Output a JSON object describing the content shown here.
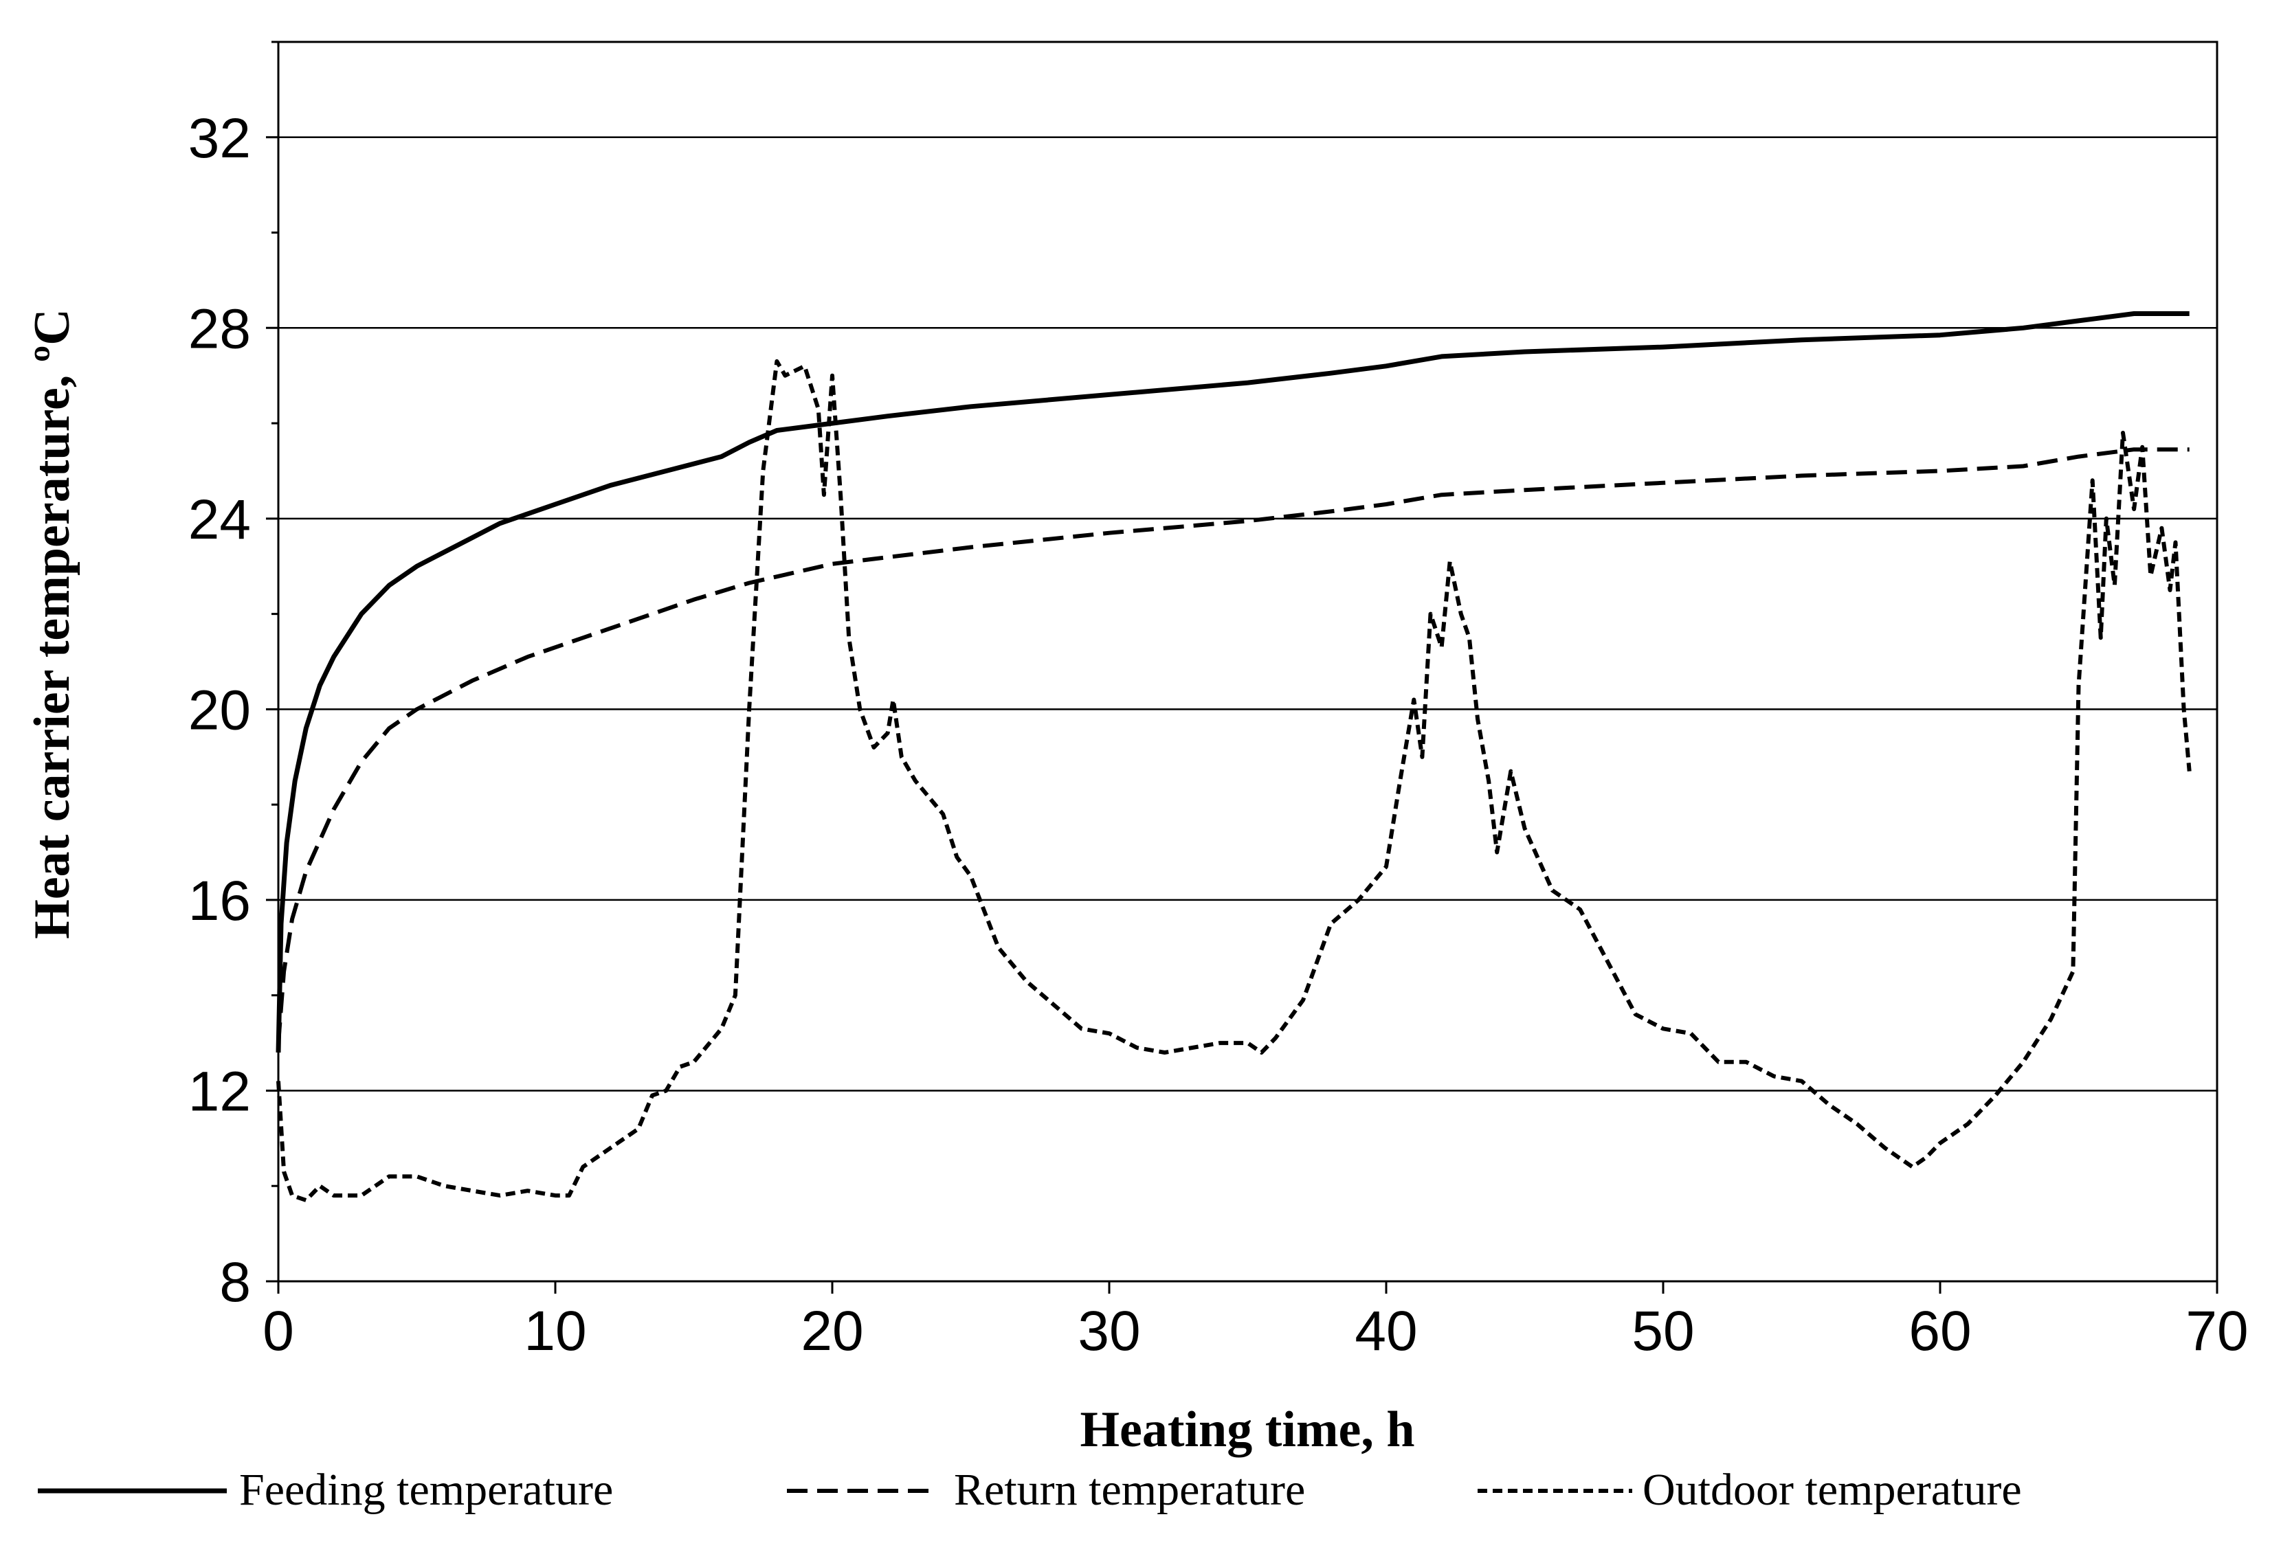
{
  "chart_data": {
    "type": "line",
    "title": "",
    "xlabel": "Heating time, h",
    "ylabel": "Heat carrier temperature, ºC",
    "xlim": [
      0,
      70
    ],
    "ylim": [
      8,
      34
    ],
    "x_ticks": [
      0,
      10,
      20,
      30,
      40,
      50,
      60,
      70
    ],
    "y_ticks": [
      8,
      12,
      16,
      20,
      24,
      28,
      32
    ],
    "grid": "horizontal",
    "legend_position": "bottom",
    "series": [
      {
        "name": "Feeding temperature",
        "style": "solid",
        "points": [
          [
            0,
            12.8
          ],
          [
            0.1,
            15.5
          ],
          [
            0.3,
            17.2
          ],
          [
            0.6,
            18.5
          ],
          [
            1,
            19.6
          ],
          [
            1.5,
            20.5
          ],
          [
            2,
            21.1
          ],
          [
            3,
            22.0
          ],
          [
            4,
            22.6
          ],
          [
            5,
            23.0
          ],
          [
            6,
            23.3
          ],
          [
            7,
            23.6
          ],
          [
            8,
            23.9
          ],
          [
            9,
            24.1
          ],
          [
            10,
            24.3
          ],
          [
            12,
            24.7
          ],
          [
            14,
            25.0
          ],
          [
            16,
            25.3
          ],
          [
            17,
            25.6
          ],
          [
            18,
            25.85
          ],
          [
            20,
            26.0
          ],
          [
            22,
            26.15
          ],
          [
            25,
            26.35
          ],
          [
            30,
            26.6
          ],
          [
            35,
            26.85
          ],
          [
            38,
            27.05
          ],
          [
            40,
            27.2
          ],
          [
            42,
            27.4
          ],
          [
            45,
            27.5
          ],
          [
            50,
            27.6
          ],
          [
            55,
            27.75
          ],
          [
            60,
            27.85
          ],
          [
            63,
            28.0
          ],
          [
            65,
            28.15
          ],
          [
            67,
            28.3
          ],
          [
            69,
            28.3
          ]
        ]
      },
      {
        "name": "Return temperature",
        "style": "dashed",
        "points": [
          [
            0,
            13.0
          ],
          [
            0.2,
            14.5
          ],
          [
            0.5,
            15.6
          ],
          [
            1,
            16.6
          ],
          [
            2,
            17.9
          ],
          [
            3,
            18.9
          ],
          [
            4,
            19.6
          ],
          [
            5,
            20.0
          ],
          [
            7,
            20.6
          ],
          [
            9,
            21.1
          ],
          [
            11,
            21.5
          ],
          [
            13,
            21.9
          ],
          [
            15,
            22.3
          ],
          [
            17,
            22.65
          ],
          [
            20,
            23.05
          ],
          [
            25,
            23.4
          ],
          [
            30,
            23.7
          ],
          [
            35,
            23.95
          ],
          [
            38,
            24.15
          ],
          [
            40,
            24.3
          ],
          [
            42,
            24.5
          ],
          [
            45,
            24.6
          ],
          [
            50,
            24.75
          ],
          [
            55,
            24.9
          ],
          [
            60,
            25.0
          ],
          [
            63,
            25.1
          ],
          [
            65,
            25.3
          ],
          [
            67,
            25.45
          ],
          [
            69,
            25.45
          ]
        ]
      },
      {
        "name": "Outdoor temperature",
        "style": "dotted",
        "points": [
          [
            0,
            12.2
          ],
          [
            0.2,
            10.3
          ],
          [
            0.5,
            9.8
          ],
          [
            1,
            9.7
          ],
          [
            1.5,
            10.0
          ],
          [
            2,
            9.8
          ],
          [
            3,
            9.8
          ],
          [
            4,
            10.2
          ],
          [
            5,
            10.2
          ],
          [
            6,
            10.0
          ],
          [
            7,
            9.9
          ],
          [
            8,
            9.8
          ],
          [
            9,
            9.9
          ],
          [
            10,
            9.8
          ],
          [
            10.5,
            9.8
          ],
          [
            11,
            10.4
          ],
          [
            12,
            10.8
          ],
          [
            13,
            11.2
          ],
          [
            13.5,
            11.9
          ],
          [
            14,
            12.0
          ],
          [
            14.5,
            12.5
          ],
          [
            15,
            12.6
          ],
          [
            16,
            13.3
          ],
          [
            16.5,
            14.0
          ],
          [
            17,
            20.0
          ],
          [
            17.5,
            25.0
          ],
          [
            18,
            27.3
          ],
          [
            18.3,
            27.0
          ],
          [
            19,
            27.2
          ],
          [
            19.5,
            26.3
          ],
          [
            19.7,
            24.5
          ],
          [
            20,
            27.0
          ],
          [
            20.3,
            24.5
          ],
          [
            20.6,
            21.5
          ],
          [
            21,
            20.0
          ],
          [
            21.5,
            19.2
          ],
          [
            22,
            19.5
          ],
          [
            22.2,
            20.2
          ],
          [
            22.5,
            19.0
          ],
          [
            23,
            18.5
          ],
          [
            24,
            17.8
          ],
          [
            24.5,
            16.9
          ],
          [
            25,
            16.5
          ],
          [
            26,
            15.0
          ],
          [
            27,
            14.3
          ],
          [
            28,
            13.8
          ],
          [
            29,
            13.3
          ],
          [
            30,
            13.2
          ],
          [
            31,
            12.9
          ],
          [
            32,
            12.8
          ],
          [
            33,
            12.9
          ],
          [
            34,
            13.0
          ],
          [
            35,
            13.0
          ],
          [
            35.5,
            12.8
          ],
          [
            36,
            13.1
          ],
          [
            37,
            13.9
          ],
          [
            37.5,
            14.7
          ],
          [
            38,
            15.5
          ],
          [
            39,
            16.0
          ],
          [
            40,
            16.7
          ],
          [
            40.5,
            18.5
          ],
          [
            41,
            20.2
          ],
          [
            41.3,
            19.0
          ],
          [
            41.6,
            22.0
          ],
          [
            42,
            21.3
          ],
          [
            42.3,
            23.1
          ],
          [
            42.7,
            22.0
          ],
          [
            43,
            21.5
          ],
          [
            43.3,
            19.8
          ],
          [
            43.7,
            18.5
          ],
          [
            44,
            17.0
          ],
          [
            44.5,
            18.7
          ],
          [
            45,
            17.5
          ],
          [
            46,
            16.2
          ],
          [
            47,
            15.8
          ],
          [
            48,
            14.7
          ],
          [
            49,
            13.6
          ],
          [
            50,
            13.3
          ],
          [
            51,
            13.2
          ],
          [
            52,
            12.6
          ],
          [
            53,
            12.6
          ],
          [
            54,
            12.3
          ],
          [
            55,
            12.2
          ],
          [
            56,
            11.7
          ],
          [
            57,
            11.3
          ],
          [
            58,
            10.8
          ],
          [
            59,
            10.4
          ],
          [
            59.5,
            10.6
          ],
          [
            60,
            10.9
          ],
          [
            61,
            11.3
          ],
          [
            62,
            11.9
          ],
          [
            63,
            12.6
          ],
          [
            64,
            13.5
          ],
          [
            64.8,
            14.5
          ],
          [
            65,
            20.5
          ],
          [
            65.5,
            24.8
          ],
          [
            65.8,
            21.5
          ],
          [
            66,
            24.0
          ],
          [
            66.3,
            22.6
          ],
          [
            66.6,
            25.8
          ],
          [
            67,
            24.2
          ],
          [
            67.3,
            25.5
          ],
          [
            67.6,
            22.8
          ],
          [
            68,
            23.8
          ],
          [
            68.3,
            22.5
          ],
          [
            68.5,
            23.5
          ],
          [
            68.8,
            20.0
          ],
          [
            69,
            18.7
          ]
        ]
      }
    ]
  }
}
